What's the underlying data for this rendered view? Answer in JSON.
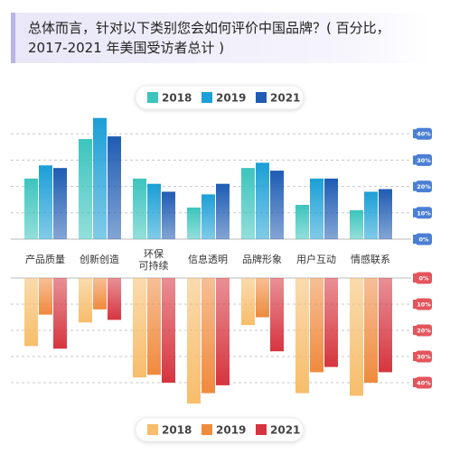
{
  "chart_data": [
    {
      "type": "bar",
      "title": "总体而言，针对以下类别您会如何评价中国品牌？( 百分比，\n2017-2021 年美国受访者总计 )",
      "categories": [
        "产品质量",
        "创新创造",
        "环保\n可持续",
        "信息透明",
        "品牌形象",
        "用户互动",
        "情感联系"
      ],
      "series": [
        {
          "name": "2018",
          "color": "#3cc4bd",
          "values": [
            23,
            38,
            23,
            12,
            27,
            13,
            11
          ]
        },
        {
          "name": "2019",
          "color": "#1b9fd6",
          "values": [
            28,
            46,
            21,
            17,
            29,
            23,
            18
          ]
        },
        {
          "name": "2021",
          "color": "#1f5cb3",
          "values": [
            27,
            39,
            18,
            21,
            26,
            23,
            19
          ]
        }
      ],
      "ylim": [
        0,
        50
      ],
      "yticks": [
        {
          "value": 0,
          "label": "0%"
        },
        {
          "value": 10,
          "label": "10%"
        },
        {
          "value": 20,
          "label": "20%"
        },
        {
          "value": 30,
          "label": "30%"
        },
        {
          "value": 40,
          "label": "40%"
        }
      ],
      "grid": true,
      "legend": "top"
    },
    {
      "type": "bar",
      "series": [
        {
          "name": "2018",
          "color": "#f7bd6b",
          "values": [
            26,
            17,
            38,
            48,
            18,
            44,
            45
          ]
        },
        {
          "name": "2019",
          "color": "#f08a3e",
          "values": [
            14,
            12,
            37,
            44,
            15,
            36,
            40
          ]
        },
        {
          "name": "2021",
          "color": "#d6353f",
          "values": [
            27,
            16,
            40,
            41,
            28,
            34,
            36
          ]
        }
      ],
      "ylim": [
        0,
        50
      ],
      "yticks": [
        {
          "value": 0,
          "label": "0%"
        },
        {
          "value": 10,
          "label": "10%"
        },
        {
          "value": 20,
          "label": "20%"
        },
        {
          "value": 30,
          "label": "30%"
        },
        {
          "value": 40,
          "label": "40%"
        }
      ],
      "grid": true,
      "legend": "bottom"
    }
  ]
}
